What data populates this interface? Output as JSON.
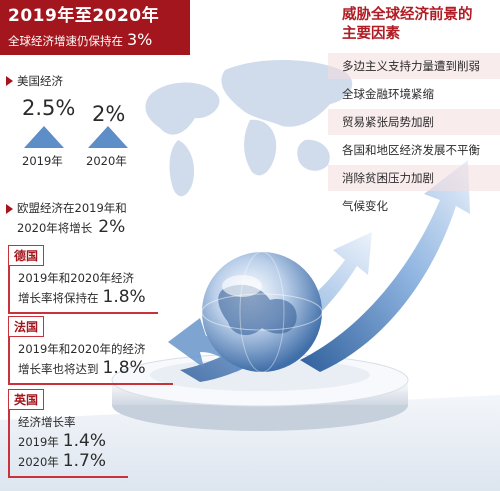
{
  "header": {
    "title": "2019年至2020年",
    "subtitle": "全球经济增速仍保持在",
    "subtitle_value": "3%"
  },
  "threats": {
    "title_line1": "威胁全球经济前景的",
    "title_line2": "主要因素",
    "items": [
      "多边主义支持力量遭到削弱",
      "全球金融环境紧缩",
      "贸易紧张局势加剧",
      "各国和地区经济发展不平衡",
      "消除贫困压力加剧",
      "气候变化"
    ]
  },
  "us": {
    "label": "美国经济",
    "value_2019": "2.5%",
    "value_2020": "2%",
    "year_2019": "2019年",
    "year_2020": "2020年"
  },
  "eu": {
    "line1": "欧盟经济在2019年和",
    "line2": "2020年将增长",
    "value": "2%"
  },
  "germany": {
    "tag": "德国",
    "line1": "2019年和2020年经济",
    "line2": "增长率将保持在",
    "value": "1.8%"
  },
  "france": {
    "tag": "法国",
    "line1": "2019年和2020年的经济",
    "line2": "增长率也将达到",
    "value": "1.8%"
  },
  "uk": {
    "tag": "英国",
    "line1": "经济增长率",
    "year_2019": "2019年",
    "value_2019": "1.4%",
    "year_2020": "2020年",
    "value_2020": "1.7%"
  },
  "colors": {
    "brand_red": "#a4161e",
    "arrow_blue": "#5e8ec7",
    "map_blue": "#c9d7e8"
  }
}
